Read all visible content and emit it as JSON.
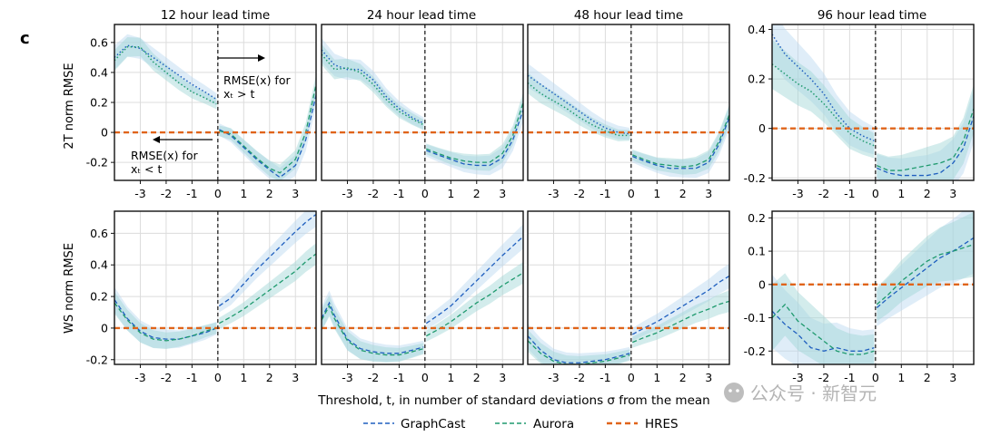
{
  "figure": {
    "panel_label": "c",
    "columns": [
      "12 hour lead time",
      "24 hour lead time",
      "48 hour lead time",
      "96 hour lead time"
    ],
    "row_labels": [
      "2T norm RMSE",
      "WS norm RMSE"
    ],
    "xlabel": "Threshold, t, in number of standard deviations σ from the mean",
    "legend": [
      {
        "name": "GraphCast",
        "color": "#1f5fbf",
        "style": "dashed"
      },
      {
        "name": "Aurora",
        "color": "#1f9a6e",
        "style": "dashed"
      },
      {
        "name": "HRES",
        "color": "#e0641a",
        "style": "dashed-thick"
      }
    ],
    "annotations": {
      "right": {
        "line1": "RMSE(x) for",
        "line2": "xₜ > t"
      },
      "left": {
        "line1": "RMSE(x) for",
        "line2": "xₜ < t"
      }
    },
    "watermark": "公众号 · 新智元"
  },
  "chart_data": [
    {
      "type": "line",
      "title": "12 hour lead time",
      "ylabel": "2T norm RMSE",
      "xlim": [
        -4,
        3.8
      ],
      "ylim": [
        -0.32,
        0.72
      ],
      "xticks": [
        -3,
        -2,
        -1,
        0,
        1,
        2,
        3
      ],
      "yticks": [
        -0.2,
        0,
        0.2,
        0.4,
        0.6
      ],
      "series": [
        {
          "name": "GraphCast",
          "x": [
            -4,
            -3.5,
            -3,
            -2.5,
            -2,
            -1.5,
            -1,
            -0.5,
            -0.05
          ],
          "y": [
            0.5,
            0.58,
            0.56,
            0.5,
            0.44,
            0.38,
            0.32,
            0.27,
            0.22
          ]
        },
        {
          "name": "Aurora",
          "x": [
            -4,
            -3.5,
            -3,
            -2.5,
            -2,
            -1.5,
            -1,
            -0.5,
            -0.05
          ],
          "y": [
            0.48,
            0.57,
            0.57,
            0.47,
            0.4,
            0.33,
            0.27,
            0.23,
            0.19
          ]
        },
        {
          "name": "GraphCast",
          "x": [
            0.05,
            0.5,
            1,
            1.5,
            2,
            2.4,
            3,
            3.4,
            3.8
          ],
          "y": [
            0.02,
            -0.02,
            -0.1,
            -0.18,
            -0.25,
            -0.3,
            -0.22,
            -0.05,
            0.25
          ]
        },
        {
          "name": "Aurora",
          "x": [
            0.05,
            0.5,
            1,
            1.5,
            2,
            2.4,
            3,
            3.4,
            3.8
          ],
          "y": [
            0.01,
            -0.01,
            -0.09,
            -0.17,
            -0.24,
            -0.27,
            -0.18,
            0.0,
            0.32
          ]
        },
        {
          "name": "HRES",
          "x": [
            -4,
            3.8
          ],
          "y": [
            0,
            0
          ]
        }
      ]
    },
    {
      "type": "line",
      "title": "24 hour lead time",
      "ylabel": "",
      "xlim": [
        -4,
        3.8
      ],
      "ylim": [
        -0.32,
        0.72
      ],
      "xticks": [
        -3,
        -2,
        -1,
        0,
        1,
        2,
        3
      ],
      "yticks": [],
      "series": [
        {
          "name": "GraphCast",
          "x": [
            -4,
            -3.5,
            -3,
            -2.5,
            -2,
            -1.5,
            -1,
            -0.5,
            -0.05
          ],
          "y": [
            0.55,
            0.45,
            0.42,
            0.42,
            0.35,
            0.24,
            0.16,
            0.1,
            0.06
          ]
        },
        {
          "name": "Aurora",
          "x": [
            -4,
            -3.5,
            -3,
            -2.5,
            -2,
            -1.5,
            -1,
            -0.5,
            -0.05
          ],
          "y": [
            0.52,
            0.42,
            0.43,
            0.4,
            0.32,
            0.22,
            0.14,
            0.09,
            0.05
          ]
        },
        {
          "name": "GraphCast",
          "x": [
            0.05,
            0.5,
            1,
            1.5,
            2,
            2.5,
            3,
            3.4,
            3.8
          ],
          "y": [
            -0.12,
            -0.15,
            -0.18,
            -0.21,
            -0.22,
            -0.22,
            -0.17,
            -0.05,
            0.15
          ]
        },
        {
          "name": "Aurora",
          "x": [
            0.05,
            0.5,
            1,
            1.5,
            2,
            2.5,
            3,
            3.4,
            3.8
          ],
          "y": [
            -0.11,
            -0.14,
            -0.17,
            -0.19,
            -0.2,
            -0.2,
            -0.14,
            -0.02,
            0.2
          ]
        },
        {
          "name": "HRES",
          "x": [
            -4,
            3.8
          ],
          "y": [
            0,
            0
          ]
        }
      ]
    },
    {
      "type": "line",
      "title": "48 hour lead time",
      "ylabel": "",
      "xlim": [
        -4,
        3.8
      ],
      "ylim": [
        -0.32,
        0.72
      ],
      "xticks": [
        -3,
        -2,
        -1,
        0,
        1,
        2,
        3
      ],
      "yticks": [],
      "series": [
        {
          "name": "GraphCast",
          "x": [
            -4,
            -3.5,
            -3,
            -2.5,
            -2,
            -1.5,
            -1,
            -0.5,
            -0.05
          ],
          "y": [
            0.38,
            0.32,
            0.26,
            0.2,
            0.14,
            0.08,
            0.03,
            0.0,
            -0.01
          ]
        },
        {
          "name": "Aurora",
          "x": [
            -4,
            -3.5,
            -3,
            -2.5,
            -2,
            -1.5,
            -1,
            -0.5,
            -0.05
          ],
          "y": [
            0.33,
            0.26,
            0.21,
            0.16,
            0.1,
            0.05,
            0.01,
            -0.02,
            -0.02
          ]
        },
        {
          "name": "GraphCast",
          "x": [
            0.05,
            0.5,
            1,
            1.5,
            2,
            2.5,
            3,
            3.4,
            3.8
          ],
          "y": [
            -0.16,
            -0.19,
            -0.22,
            -0.24,
            -0.24,
            -0.24,
            -0.2,
            -0.08,
            0.1
          ]
        },
        {
          "name": "Aurora",
          "x": [
            0.05,
            0.5,
            1,
            1.5,
            2,
            2.5,
            3,
            3.4,
            3.8
          ],
          "y": [
            -0.15,
            -0.18,
            -0.21,
            -0.22,
            -0.23,
            -0.22,
            -0.18,
            -0.06,
            0.12
          ]
        },
        {
          "name": "HRES",
          "x": [
            -4,
            3.8
          ],
          "y": [
            0,
            0
          ]
        }
      ]
    },
    {
      "type": "line",
      "title": "96 hour lead time",
      "ylabel": "",
      "xlim": [
        -4,
        3.8
      ],
      "ylim": [
        -0.21,
        0.42
      ],
      "xticks": [
        -3,
        -2,
        -1,
        0,
        1,
        2,
        3
      ],
      "yticks": [
        -0.2,
        0,
        0.2,
        0.4
      ],
      "series": [
        {
          "name": "GraphCast",
          "x": [
            -4,
            -3.5,
            -3,
            -2.5,
            -2,
            -1.5,
            -1,
            -0.5,
            -0.05
          ],
          "y": [
            0.38,
            0.3,
            0.25,
            0.2,
            0.14,
            0.06,
            0.0,
            -0.03,
            -0.05
          ]
        },
        {
          "name": "Aurora",
          "x": [
            -4,
            -3.5,
            -3,
            -2.5,
            -2,
            -1.5,
            -1,
            -0.5,
            -0.05
          ],
          "y": [
            0.26,
            0.22,
            0.18,
            0.15,
            0.1,
            0.04,
            -0.02,
            -0.05,
            -0.07
          ]
        },
        {
          "name": "GraphCast",
          "x": [
            0.05,
            0.5,
            1,
            1.5,
            2,
            2.5,
            3,
            3.4,
            3.8
          ],
          "y": [
            -0.16,
            -0.18,
            -0.19,
            -0.19,
            -0.19,
            -0.18,
            -0.14,
            -0.08,
            0.05
          ]
        },
        {
          "name": "Aurora",
          "x": [
            0.05,
            0.5,
            1,
            1.5,
            2,
            2.5,
            3,
            3.4,
            3.8
          ],
          "y": [
            -0.15,
            -0.17,
            -0.17,
            -0.16,
            -0.15,
            -0.14,
            -0.12,
            -0.05,
            0.08
          ]
        },
        {
          "name": "HRES",
          "x": [
            -4,
            3.8
          ],
          "y": [
            0,
            0
          ]
        }
      ]
    },
    {
      "type": "line",
      "title": "",
      "ylabel": "WS norm RMSE",
      "xlim": [
        -4,
        3.8
      ],
      "ylim": [
        -0.23,
        0.74
      ],
      "xticks": [
        -3,
        -2,
        -1,
        0,
        1,
        2,
        3
      ],
      "yticks": [
        -0.2,
        0,
        0.2,
        0.4,
        0.6
      ],
      "series": [
        {
          "name": "GraphCast",
          "x": [
            -4,
            -3.5,
            -3,
            -2.5,
            -2,
            -1.5,
            -1,
            -0.5,
            -0.05
          ],
          "y": [
            0.18,
            0.06,
            -0.02,
            -0.06,
            -0.07,
            -0.07,
            -0.05,
            -0.03,
            0.0
          ]
        },
        {
          "name": "Aurora",
          "x": [
            -4,
            -3.5,
            -3,
            -2.5,
            -2,
            -1.5,
            -1,
            -0.5,
            -0.05
          ],
          "y": [
            0.16,
            0.05,
            -0.03,
            -0.07,
            -0.08,
            -0.07,
            -0.05,
            -0.02,
            0.0
          ]
        },
        {
          "name": "GraphCast",
          "x": [
            0.05,
            0.5,
            1,
            1.5,
            2,
            2.5,
            3,
            3.4,
            3.8
          ],
          "y": [
            0.14,
            0.19,
            0.28,
            0.37,
            0.45,
            0.53,
            0.61,
            0.67,
            0.72
          ]
        },
        {
          "name": "Aurora",
          "x": [
            0.05,
            0.5,
            1,
            1.5,
            2,
            2.5,
            3,
            3.4,
            3.8
          ],
          "y": [
            0.03,
            0.07,
            0.12,
            0.18,
            0.24,
            0.3,
            0.36,
            0.42,
            0.47
          ]
        },
        {
          "name": "HRES",
          "x": [
            -4,
            3.8
          ],
          "y": [
            0,
            0
          ]
        }
      ]
    },
    {
      "type": "line",
      "title": "",
      "ylabel": "",
      "xlim": [
        -4,
        3.8
      ],
      "ylim": [
        -0.23,
        0.74
      ],
      "xticks": [
        -3,
        -2,
        -1,
        0,
        1,
        2,
        3
      ],
      "yticks": [],
      "series": [
        {
          "name": "GraphCast",
          "x": [
            -4,
            -3.7,
            -3.5,
            -3,
            -2.5,
            -2,
            -1.5,
            -1,
            -0.5,
            -0.05
          ],
          "y": [
            0.06,
            0.16,
            0.08,
            -0.07,
            -0.13,
            -0.15,
            -0.16,
            -0.16,
            -0.14,
            -0.12
          ]
        },
        {
          "name": "Aurora",
          "x": [
            -4,
            -3.7,
            -3.5,
            -3,
            -2.5,
            -2,
            -1.5,
            -1,
            -0.5,
            -0.05
          ],
          "y": [
            0.05,
            0.14,
            0.06,
            -0.08,
            -0.14,
            -0.16,
            -0.17,
            -0.17,
            -0.15,
            -0.13
          ]
        },
        {
          "name": "GraphCast",
          "x": [
            0.05,
            0.5,
            1,
            1.5,
            2,
            2.5,
            3,
            3.4,
            3.8
          ],
          "y": [
            0.03,
            0.08,
            0.14,
            0.22,
            0.3,
            0.38,
            0.46,
            0.52,
            0.58
          ]
        },
        {
          "name": "Aurora",
          "x": [
            0.05,
            0.5,
            1,
            1.5,
            2,
            2.5,
            3,
            3.4,
            3.8
          ],
          "y": [
            -0.05,
            -0.01,
            0.04,
            0.1,
            0.16,
            0.21,
            0.27,
            0.31,
            0.35
          ]
        },
        {
          "name": "HRES",
          "x": [
            -4,
            3.8
          ],
          "y": [
            0,
            0
          ]
        }
      ]
    },
    {
      "type": "line",
      "title": "",
      "ylabel": "",
      "xlim": [
        -4,
        3.8
      ],
      "ylim": [
        -0.23,
        0.74
      ],
      "xticks": [
        -3,
        -2,
        -1,
        0,
        1,
        2,
        3
      ],
      "yticks": [],
      "series": [
        {
          "name": "GraphCast",
          "x": [
            -4,
            -3.5,
            -3,
            -2.5,
            -2,
            -1.5,
            -1,
            -0.5,
            -0.05
          ],
          "y": [
            -0.05,
            -0.14,
            -0.2,
            -0.22,
            -0.22,
            -0.21,
            -0.2,
            -0.18,
            -0.16
          ]
        },
        {
          "name": "Aurora",
          "x": [
            -4,
            -3.5,
            -3,
            -2.5,
            -2,
            -1.5,
            -1,
            -0.5,
            -0.05
          ],
          "y": [
            -0.08,
            -0.16,
            -0.21,
            -0.23,
            -0.23,
            -0.22,
            -0.21,
            -0.19,
            -0.17
          ]
        },
        {
          "name": "GraphCast",
          "x": [
            0.05,
            0.5,
            1,
            1.5,
            2,
            2.5,
            3,
            3.4,
            3.8
          ],
          "y": [
            -0.04,
            0.0,
            0.04,
            0.09,
            0.14,
            0.19,
            0.24,
            0.29,
            0.33
          ]
        },
        {
          "name": "Aurora",
          "x": [
            0.05,
            0.5,
            1,
            1.5,
            2,
            2.5,
            3,
            3.4,
            3.8
          ],
          "y": [
            -0.09,
            -0.06,
            -0.03,
            0.01,
            0.05,
            0.09,
            0.12,
            0.15,
            0.17
          ]
        },
        {
          "name": "HRES",
          "x": [
            -4,
            3.8
          ],
          "y": [
            0,
            0
          ]
        }
      ]
    },
    {
      "type": "line",
      "title": "",
      "ylabel": "",
      "xlim": [
        -4,
        3.8
      ],
      "ylim": [
        -0.24,
        0.22
      ],
      "xticks": [
        -3,
        -2,
        -1,
        0,
        1,
        2,
        3
      ],
      "yticks": [
        -0.2,
        -0.1,
        0,
        0.1,
        0.2
      ],
      "series": [
        {
          "name": "GraphCast",
          "x": [
            -4,
            -3.5,
            -3,
            -2.5,
            -2,
            -1.5,
            -1,
            -0.5,
            -0.05
          ],
          "y": [
            -0.08,
            -0.12,
            -0.15,
            -0.19,
            -0.2,
            -0.19,
            -0.2,
            -0.2,
            -0.19
          ]
        },
        {
          "name": "Aurora",
          "x": [
            -4,
            -3.5,
            -3,
            -2.5,
            -2,
            -1.5,
            -1,
            -0.5,
            -0.05
          ],
          "y": [
            -0.1,
            -0.06,
            -0.11,
            -0.14,
            -0.17,
            -0.2,
            -0.21,
            -0.21,
            -0.2
          ]
        },
        {
          "name": "GraphCast",
          "x": [
            0.05,
            0.5,
            1,
            1.5,
            2,
            2.5,
            3,
            3.4,
            3.8
          ],
          "y": [
            -0.07,
            -0.04,
            -0.01,
            0.02,
            0.05,
            0.08,
            0.1,
            0.12,
            0.14
          ]
        },
        {
          "name": "Aurora",
          "x": [
            0.05,
            0.5,
            1,
            1.5,
            2,
            2.5,
            3,
            3.4,
            3.8
          ],
          "y": [
            -0.06,
            -0.03,
            0.01,
            0.04,
            0.07,
            0.09,
            0.1,
            0.11,
            0.12
          ]
        },
        {
          "name": "HRES",
          "x": [
            -4,
            3.8
          ],
          "y": [
            0,
            0
          ]
        }
      ]
    }
  ]
}
